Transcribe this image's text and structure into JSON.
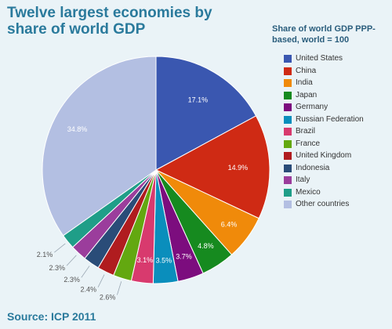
{
  "title": "Twelve largest economies by share of world GDP",
  "source": "Source: ICP 2011",
  "legend_title": "Share of world GDP PPP-based, world = 100",
  "chart_data": {
    "type": "pie",
    "slices": [
      {
        "label": "United States",
        "value": 17.1,
        "value_label": "17.1%",
        "color": "#3a57b0"
      },
      {
        "label": "China",
        "value": 14.9,
        "value_label": "14.9%",
        "color": "#cf2a14"
      },
      {
        "label": "India",
        "value": 6.4,
        "value_label": "6.4%",
        "color": "#f08a0a"
      },
      {
        "label": "Japan",
        "value": 4.8,
        "value_label": "4.8%",
        "color": "#168a1f"
      },
      {
        "label": "Germany",
        "value": 3.7,
        "value_label": "3.7%",
        "color": "#7c0d7e"
      },
      {
        "label": "Russian Federation",
        "value": 3.5,
        "value_label": "3.5%",
        "color": "#0a8ebc"
      },
      {
        "label": "Brazil",
        "value": 3.1,
        "value_label": "3.1%",
        "color": "#d83a6e"
      },
      {
        "label": "France",
        "value": 2.6,
        "value_label": "2.6%",
        "color": "#63a810"
      },
      {
        "label": "United Kingdom",
        "value": 2.4,
        "value_label": "2.4%",
        "color": "#b01c1f"
      },
      {
        "label": "Indonesia",
        "value": 2.3,
        "value_label": "2.3%",
        "color": "#2a4c78"
      },
      {
        "label": "Italy",
        "value": 2.3,
        "value_label": "2.3%",
        "color": "#9b3d9c"
      },
      {
        "label": "Mexico",
        "value": 2.1,
        "value_label": "2.1%",
        "color": "#1f9e88"
      },
      {
        "label": "Other countries",
        "value": 34.8,
        "value_label": "34.8%",
        "color": "#b3bfe2"
      }
    ]
  }
}
